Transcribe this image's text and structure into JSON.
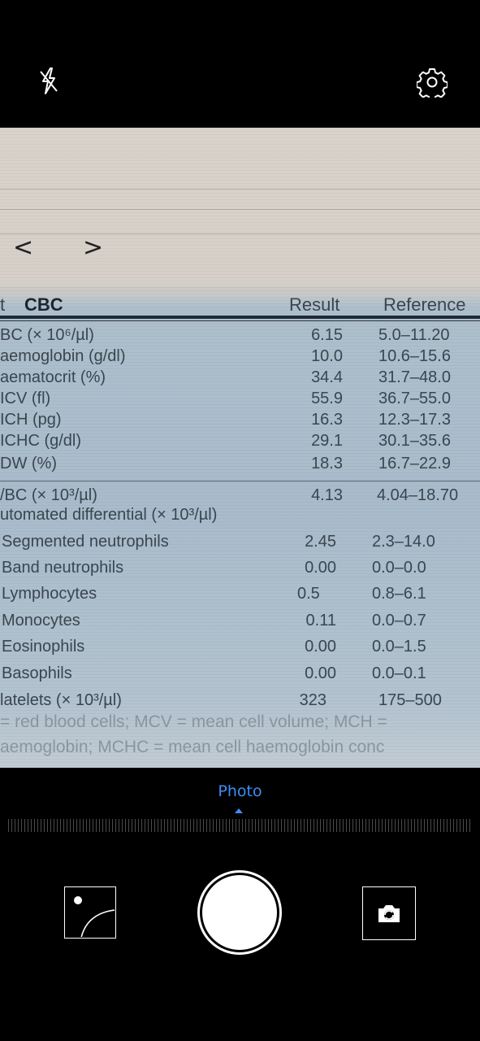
{
  "top_bar": {
    "flash_icon": "flash-off-icon",
    "settings_icon": "gear-icon"
  },
  "viewfinder": {
    "document": {
      "nav": {
        "prev": "<",
        "next": ">"
      },
      "header": {
        "test": "t",
        "title": "CBC",
        "result": "Result",
        "reference": "Reference"
      },
      "rows": [
        {
          "label": "BC (× 10⁶/µl)",
          "result": "6.15",
          "reference": "5.0–11.20"
        },
        {
          "label": "aemoglobin (g/dl)",
          "result": "10.0",
          "reference": "10.6–15.6"
        },
        {
          "label": "aematocrit (%)",
          "result": "34.4",
          "reference": "31.7–48.0"
        },
        {
          "label": "ICV (fl)",
          "result": "55.9",
          "reference": "36.7–55.0"
        },
        {
          "label": "ICH (pg)",
          "result": "16.3",
          "reference": "12.3–17.3"
        },
        {
          "label": "ICHC (g/dl)",
          "result": "29.1",
          "reference": "30.1–35.6"
        },
        {
          "label": "DW (%)",
          "result": "18.3",
          "reference": "16.7–22.9"
        }
      ],
      "wbc": {
        "label": "/BC (× 10³/µl)",
        "result": "4.13",
        "reference": "4.04–18.70"
      },
      "differential_label": "utomated differential (× 10³/µl)",
      "differential": [
        {
          "label": "Segmented neutrophils",
          "result": "2.45",
          "reference": "2.3–14.0"
        },
        {
          "label": "Band neutrophils",
          "result": "0.00",
          "reference": "0.0–0.0"
        },
        {
          "label": "Lymphocytes",
          "result": "0.5",
          "reference": "0.8–6.1"
        },
        {
          "label": "Monocytes",
          "result": "0.11",
          "reference": "0.0–0.7"
        },
        {
          "label": "Eosinophils",
          "result": "0.00",
          "reference": "0.0–1.5"
        },
        {
          "label": "Basophils",
          "result": "0.00",
          "reference": "0.0–0.1"
        }
      ],
      "platelets": {
        "label": "latelets (× 10³/µl)",
        "result": "323",
        "reference": "175–500"
      },
      "footnotes": [
        "= red blood cells; MCV = mean cell volume; MCH =",
        "aemoglobin; MCHC = mean cell haemoglobin conc"
      ]
    }
  },
  "mode": {
    "label": "Photo"
  },
  "controls": {
    "gallery_icon": "gallery-thumbnail-icon",
    "shutter": "shutter-button",
    "switch_icon": "switch-camera-icon"
  }
}
